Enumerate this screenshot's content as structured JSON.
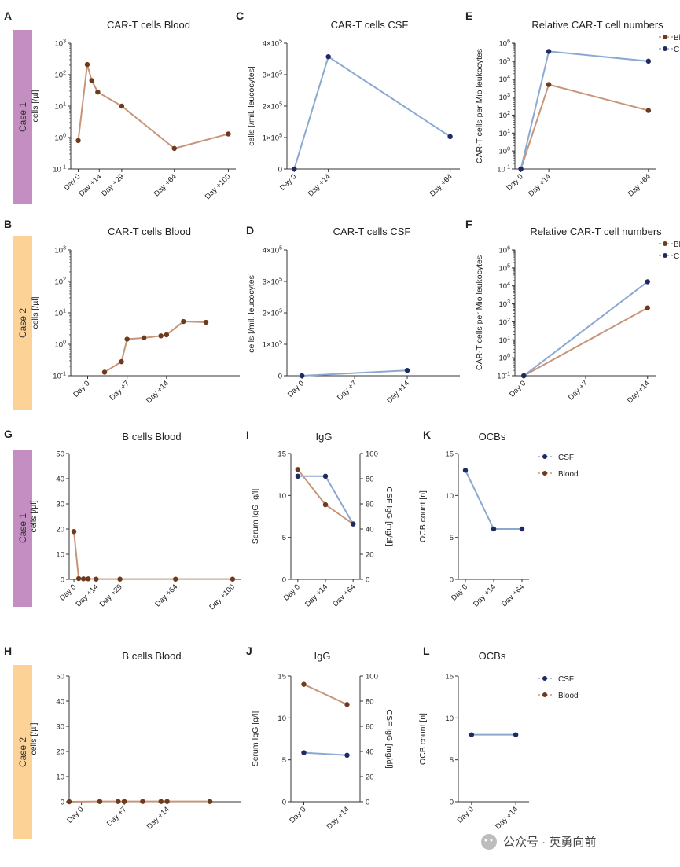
{
  "colors": {
    "blood": "#c8957a",
    "blood_marker": "#6e3a1e",
    "csf": "#8ba9d0",
    "csf_marker": "#1f2a63",
    "case1": "#c58ec2",
    "case2": "#fdd296",
    "axis": "#333333"
  },
  "case_labels": {
    "row1": "Case 1",
    "row2": "Case 2",
    "row3": "Case 1",
    "row4": "Case 2"
  },
  "legend": {
    "csf": "CSF",
    "blood": "Blood",
    "truncated_blood": "Bl",
    "truncated_csf": "C"
  },
  "watermark": {
    "text": "公众号 · 英勇向前"
  },
  "chart_data": [
    {
      "id": "A",
      "letter": "A",
      "type": "line",
      "title": "CAR-T cells Blood",
      "ylabel": "cells [/µl]",
      "xlabel": "",
      "yscale": "log",
      "ylim": [
        0.1,
        1000
      ],
      "yticks": [
        "10^-1",
        "10^0",
        "10^1",
        "10^2",
        "10^3"
      ],
      "xlim": [
        -5,
        105
      ],
      "xticks": [
        {
          "x": 0,
          "label": "Day 0"
        },
        {
          "x": 14,
          "label": "Day +14"
        },
        {
          "x": 29,
          "label": "Day +29"
        },
        {
          "x": 64,
          "label": "Day +64"
        },
        {
          "x": 100,
          "label": "Day +100"
        }
      ],
      "series": [
        {
          "color_key": "blood",
          "points": [
            [
              0,
              0.8
            ],
            [
              6,
              210
            ],
            [
              9,
              65
            ],
            [
              13,
              28
            ],
            [
              29,
              10
            ],
            [
              64,
              0.45
            ],
            [
              100,
              1.3
            ]
          ]
        }
      ]
    },
    {
      "id": "C",
      "letter": "C",
      "type": "line",
      "title": "CAR-T cells CSF",
      "ylabel": "cells [/mil. leucocytes]",
      "xlabel": "",
      "yscale": "linear",
      "ylim": [
        0,
        400000
      ],
      "yticks": [
        "0",
        "1×10^5",
        "2×10^5",
        "3×10^5",
        "4×10^5"
      ],
      "xlim": [
        -3,
        68
      ],
      "xticks": [
        {
          "x": 0,
          "label": "Day 0"
        },
        {
          "x": 14,
          "label": "Day +14"
        },
        {
          "x": 64,
          "label": "Day +64"
        }
      ],
      "series": [
        {
          "color_key": "csf",
          "points": [
            [
              0,
              0
            ],
            [
              14,
              357000
            ],
            [
              64,
              103000
            ]
          ]
        }
      ]
    },
    {
      "id": "E",
      "letter": "E",
      "type": "line",
      "title": "Relative CAR-T cell numbers",
      "ylabel": "CAR-T cells per Mio leukocytes",
      "xlabel": "",
      "yscale": "log",
      "ylim": [
        0.1,
        1000000
      ],
      "yticks": [
        "10^-1",
        "10^0",
        "10^1",
        "10^2",
        "10^3",
        "10^4",
        "10^5",
        "10^6"
      ],
      "xlim": [
        -3,
        68
      ],
      "xticks": [
        {
          "x": 0,
          "label": "Day 0"
        },
        {
          "x": 14,
          "label": "Day +14"
        },
        {
          "x": 64,
          "label": "Day +64"
        }
      ],
      "series": [
        {
          "name": "Bl",
          "color_key": "blood",
          "points": [
            [
              0,
              0.1
            ],
            [
              14,
              5000
            ],
            [
              64,
              180
            ]
          ]
        },
        {
          "name": "C",
          "color_key": "csf",
          "points": [
            [
              0,
              0.1
            ],
            [
              14,
              350000
            ],
            [
              64,
              100000
            ]
          ]
        }
      ]
    },
    {
      "id": "B",
      "letter": "B",
      "type": "line",
      "title": "CAR-T cells Blood",
      "ylabel": "cells [/µl]",
      "xlabel": "",
      "yscale": "log",
      "ylim": [
        0.1,
        1000
      ],
      "yticks": [
        "10^-1",
        "10^0",
        "10^1",
        "10^2",
        "10^3"
      ],
      "xlim": [
        -3,
        27
      ],
      "xticks": [
        {
          "x": 0,
          "label": "Day 0"
        },
        {
          "x": 7,
          "label": "Day +7"
        },
        {
          "x": 14,
          "label": "Day +14"
        }
      ],
      "series": [
        {
          "color_key": "blood",
          "points": [
            [
              3,
              0.13
            ],
            [
              6,
              0.28
            ],
            [
              7,
              1.45
            ],
            [
              10,
              1.6
            ],
            [
              13,
              1.85
            ],
            [
              14,
              2.0
            ],
            [
              17,
              5.3
            ],
            [
              21,
              5.0
            ]
          ]
        }
      ]
    },
    {
      "id": "D",
      "letter": "D",
      "type": "line",
      "title": "CAR-T cells CSF",
      "ylabel": "cells [/mil. leucocytes]",
      "xlabel": "",
      "yscale": "linear",
      "ylim": [
        0,
        400000
      ],
      "yticks": [
        "0",
        "1×10^5",
        "2×10^5",
        "3×10^5",
        "4×10^5"
      ],
      "xlim": [
        -2,
        21
      ],
      "xticks": [
        {
          "x": 0,
          "label": "Day 0"
        },
        {
          "x": 7,
          "label": "Day +7"
        },
        {
          "x": 14,
          "label": "Day +14"
        }
      ],
      "series": [
        {
          "color_key": "csf",
          "points": [
            [
              0,
              0
            ],
            [
              14,
              17000
            ]
          ]
        }
      ]
    },
    {
      "id": "F",
      "letter": "F",
      "type": "line",
      "title": "Relative CAR-T cell numbers",
      "ylabel": "CAR-T cells per Mio leukocytes",
      "xlabel": "",
      "yscale": "log",
      "ylim": [
        0.1,
        1000000
      ],
      "yticks": [
        "10^-1",
        "10^0",
        "10^1",
        "10^2",
        "10^3",
        "10^4",
        "10^5",
        "10^6"
      ],
      "xlim": [
        -1,
        15
      ],
      "xticks": [
        {
          "x": 0,
          "label": "Day 0"
        },
        {
          "x": 7,
          "label": "Day +7"
        },
        {
          "x": 14,
          "label": "Day +14"
        }
      ],
      "series": [
        {
          "name": "Bl",
          "color_key": "blood",
          "points": [
            [
              0,
              0.1
            ],
            [
              14,
              600
            ]
          ]
        },
        {
          "name": "C",
          "color_key": "csf",
          "points": [
            [
              0,
              0.1
            ],
            [
              14,
              17000
            ]
          ]
        }
      ]
    },
    {
      "id": "G",
      "letter": "G",
      "type": "line",
      "title": "B cells Blood",
      "ylabel": "cells [/µl]",
      "xlabel": "",
      "yscale": "linear",
      "ylim": [
        0,
        50
      ],
      "yticks": [
        "0",
        "10",
        "20",
        "30",
        "40",
        "50"
      ],
      "xlim": [
        -3,
        105
      ],
      "xticks": [
        {
          "x": 0,
          "label": "Day 0"
        },
        {
          "x": 14,
          "label": "Day +14"
        },
        {
          "x": 29,
          "label": "Day +29"
        },
        {
          "x": 64,
          "label": "Day +64"
        },
        {
          "x": 100,
          "label": "Day +100"
        }
      ],
      "series": [
        {
          "color_key": "blood",
          "points": [
            [
              0,
              19
            ],
            [
              3,
              0.3
            ],
            [
              6,
              0.2
            ],
            [
              9,
              0.2
            ],
            [
              14,
              0.1
            ],
            [
              29,
              0.1
            ],
            [
              64,
              0.1
            ],
            [
              100,
              0.1
            ]
          ]
        }
      ]
    },
    {
      "id": "I",
      "letter": "I",
      "type": "line",
      "title": "IgG",
      "ylabel": "Serum IgG [g/l]",
      "y2label": "CSF IgG [mg/dl]",
      "xlabel": "",
      "yscale": "linear",
      "ylim": [
        0,
        15
      ],
      "y2lim": [
        0,
        100
      ],
      "yticks": [
        "0",
        "5",
        "10",
        "15"
      ],
      "y2ticks": [
        "0",
        "20",
        "40",
        "60",
        "80",
        "100"
      ],
      "xlim": [
        0,
        2
      ],
      "xpad": 0.25,
      "xticks": [
        {
          "x": 0,
          "label": "Day 0"
        },
        {
          "x": 1,
          "label": "Day +14"
        },
        {
          "x": 2,
          "label": "Day +64"
        }
      ],
      "series": [
        {
          "color_key": "blood",
          "points": [
            [
              0,
              13.1
            ],
            [
              1,
              8.9
            ],
            [
              2,
              6.6
            ]
          ]
        },
        {
          "color_key": "csf",
          "axis": "y2",
          "points": [
            [
              0,
              82
            ],
            [
              1,
              82
            ],
            [
              2,
              44
            ]
          ]
        }
      ]
    },
    {
      "id": "K",
      "letter": "K",
      "type": "line",
      "title": "OCBs",
      "ylabel": "OCB count [n]",
      "xlabel": "",
      "yscale": "linear",
      "ylim": [
        0,
        15
      ],
      "yticks": [
        "0",
        "5",
        "10",
        "15"
      ],
      "xlim": [
        0,
        2
      ],
      "xpad": 0.25,
      "xticks": [
        {
          "x": 0,
          "label": "Day 0"
        },
        {
          "x": 1,
          "label": "Day +14"
        },
        {
          "x": 2,
          "label": "Day +64"
        }
      ],
      "legend": [
        "CSF",
        "Blood"
      ],
      "series": [
        {
          "name": "CSF",
          "color_key": "csf",
          "points": [
            [
              0,
              13
            ],
            [
              1,
              6
            ],
            [
              2,
              6
            ]
          ]
        }
      ]
    },
    {
      "id": "H",
      "letter": "H",
      "type": "line",
      "title": "B cells Blood",
      "ylabel": "cells [/µl]",
      "xlabel": "",
      "yscale": "linear",
      "ylim": [
        0,
        50
      ],
      "yticks": [
        "0",
        "10",
        "20",
        "30",
        "40",
        "50"
      ],
      "xlim": [
        -2,
        26
      ],
      "xticks": [
        {
          "x": 0,
          "label": "Day 0"
        },
        {
          "x": 7,
          "label": "Day +7"
        },
        {
          "x": 14,
          "label": "Day +14"
        }
      ],
      "series": [
        {
          "color_key": "blood",
          "points": [
            [
              -2,
              0
            ],
            [
              3,
              0.1
            ],
            [
              6,
              0.1
            ],
            [
              7,
              0.1
            ],
            [
              10,
              0.1
            ],
            [
              13,
              0.1
            ],
            [
              14,
              0.1
            ],
            [
              21,
              0.1
            ]
          ]
        }
      ]
    },
    {
      "id": "J",
      "letter": "J",
      "type": "line",
      "title": "IgG",
      "ylabel": "Serum IgG [g/l]",
      "y2label": "CSF IgG [mg/dl]",
      "xlabel": "",
      "yscale": "linear",
      "ylim": [
        0,
        15
      ],
      "y2lim": [
        0,
        100
      ],
      "yticks": [
        "0",
        "5",
        "10",
        "15"
      ],
      "y2ticks": [
        "0",
        "20",
        "40",
        "60",
        "80",
        "100"
      ],
      "xlim": [
        0,
        1
      ],
      "xpad": 0.3,
      "xticks": [
        {
          "x": 0,
          "label": "Day 0"
        },
        {
          "x": 1,
          "label": "Day +14"
        }
      ],
      "series": [
        {
          "color_key": "blood",
          "points": [
            [
              0,
              14.0
            ],
            [
              1,
              11.6
            ]
          ]
        },
        {
          "color_key": "csf",
          "axis": "y2",
          "points": [
            [
              0,
              39
            ],
            [
              1,
              37
            ]
          ]
        }
      ]
    },
    {
      "id": "L",
      "letter": "L",
      "type": "line",
      "title": "OCBs",
      "ylabel": "OCB count [n]",
      "xlabel": "",
      "yscale": "linear",
      "ylim": [
        0,
        15
      ],
      "yticks": [
        "0",
        "5",
        "10",
        "15"
      ],
      "xlim": [
        0,
        1
      ],
      "xpad": 0.3,
      "xticks": [
        {
          "x": 0,
          "label": "Day 0"
        },
        {
          "x": 1,
          "label": "Day +14"
        }
      ],
      "legend": [
        "CSF",
        "Blood"
      ],
      "series": [
        {
          "name": "CSF",
          "color_key": "csf",
          "points": [
            [
              0,
              8
            ],
            [
              1,
              8
            ]
          ]
        }
      ]
    }
  ]
}
